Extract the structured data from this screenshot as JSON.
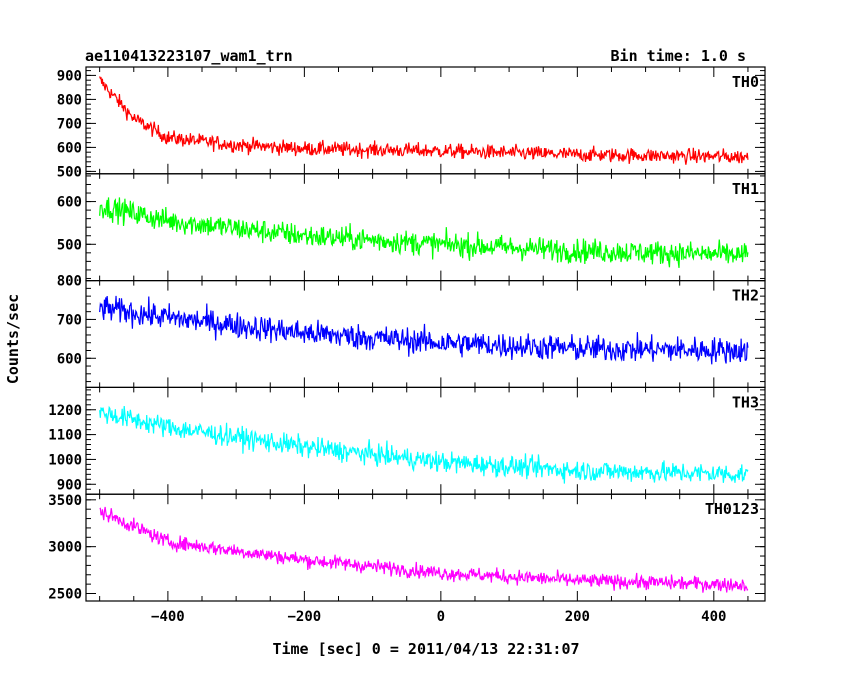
{
  "header": {
    "title": "ae110413223107_wam1_trn",
    "bin_time": "Bin time: 1.0 s"
  },
  "chart_data": {
    "type": "line",
    "title": "ae110413223107_wam1_trn",
    "xlabel": "Time [sec] 0 = 2011/04/13 22:31:07",
    "ylabel": "Counts/sec",
    "xlim": [
      -520,
      475
    ],
    "x_ticks": [
      -400,
      -200,
      0,
      200,
      400
    ],
    "x_tick_labels": [
      "−400",
      "−200",
      "0",
      "200",
      "400"
    ],
    "x_range": [
      -500,
      450
    ],
    "grid": false,
    "panels": [
      {
        "name": "TH0",
        "color": "#ff0000",
        "ylim": [
          490,
          935
        ],
        "y_ticks": [
          500,
          600,
          700,
          800,
          900
        ],
        "trend": [
          [
            -500,
            880
          ],
          [
            -450,
            720
          ],
          [
            -400,
            640
          ],
          [
            -300,
            610
          ],
          [
            -200,
            595
          ],
          [
            0,
            585
          ],
          [
            200,
            570
          ],
          [
            450,
            560
          ]
        ],
        "noise": 22
      },
      {
        "name": "TH1",
        "color": "#00ff00",
        "ylim": [
          415,
          665
        ],
        "y_ticks": [
          500,
          600
        ],
        "trend": [
          [
            -500,
            590
          ],
          [
            -400,
            555
          ],
          [
            -200,
            520
          ],
          [
            0,
            500
          ],
          [
            200,
            485
          ],
          [
            450,
            475
          ]
        ],
        "noise": 20
      },
      {
        "name": "TH2",
        "color": "#0000ff",
        "ylim": [
          525,
          800
        ],
        "y_ticks": [
          600,
          700,
          800
        ],
        "trend": [
          [
            -500,
            730
          ],
          [
            -400,
            705
          ],
          [
            -200,
            665
          ],
          [
            0,
            640
          ],
          [
            200,
            625
          ],
          [
            450,
            620
          ]
        ],
        "noise": 24
      },
      {
        "name": "TH3",
        "color": "#00ffff",
        "ylim": [
          860,
          1290
        ],
        "y_ticks": [
          900,
          1000,
          1100,
          1200
        ],
        "trend": [
          [
            -500,
            1190
          ],
          [
            -400,
            1130
          ],
          [
            -200,
            1050
          ],
          [
            0,
            990
          ],
          [
            200,
            955
          ],
          [
            450,
            940
          ]
        ],
        "noise": 30
      },
      {
        "name": "TH0123",
        "color": "#ff00ff",
        "ylim": [
          2420,
          3560
        ],
        "y_ticks": [
          2500,
          3000,
          3500
        ],
        "trend": [
          [
            -500,
            3380
          ],
          [
            -400,
            3050
          ],
          [
            -200,
            2860
          ],
          [
            0,
            2720
          ],
          [
            200,
            2640
          ],
          [
            450,
            2590
          ]
        ],
        "noise": 55
      }
    ]
  }
}
